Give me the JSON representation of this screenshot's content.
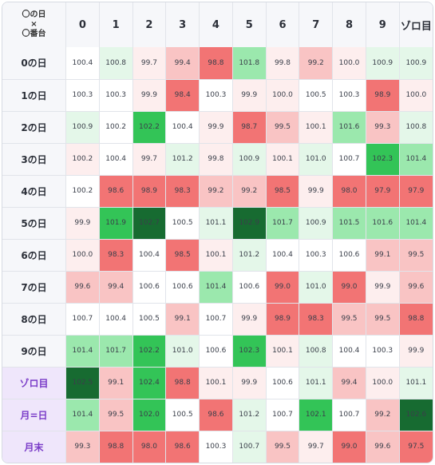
{
  "corner": {
    "line1": "〇の日",
    "line2": "×",
    "line3": "〇番台"
  },
  "columns": [
    "0",
    "1",
    "2",
    "3",
    "4",
    "5",
    "6",
    "7",
    "8",
    "9",
    "ゾロ目"
  ],
  "rows": [
    {
      "label": "0の日",
      "special": false,
      "values": [
        {
          "v": "100.4",
          "c": "0"
        },
        {
          "v": "100.8",
          "c": "g1"
        },
        {
          "v": "99.7",
          "c": "r1"
        },
        {
          "v": "99.4",
          "c": "r2"
        },
        {
          "v": "98.8",
          "c": "r3"
        },
        {
          "v": "101.8",
          "c": "g2"
        },
        {
          "v": "99.8",
          "c": "r1"
        },
        {
          "v": "99.2",
          "c": "r2"
        },
        {
          "v": "100.0",
          "c": "r1"
        },
        {
          "v": "100.9",
          "c": "g1"
        },
        {
          "v": "100.9",
          "c": "g1"
        }
      ]
    },
    {
      "label": "1の日",
      "special": false,
      "values": [
        {
          "v": "100.3",
          "c": "0"
        },
        {
          "v": "100.3",
          "c": "0"
        },
        {
          "v": "99.9",
          "c": "r1"
        },
        {
          "v": "98.4",
          "c": "r3"
        },
        {
          "v": "100.3",
          "c": "0"
        },
        {
          "v": "99.9",
          "c": "r1"
        },
        {
          "v": "100.0",
          "c": "r1"
        },
        {
          "v": "100.5",
          "c": "0"
        },
        {
          "v": "100.3",
          "c": "0"
        },
        {
          "v": "98.9",
          "c": "r3"
        },
        {
          "v": "100.0",
          "c": "r1"
        }
      ]
    },
    {
      "label": "2の日",
      "special": false,
      "values": [
        {
          "v": "100.9",
          "c": "g1"
        },
        {
          "v": "100.2",
          "c": "0"
        },
        {
          "v": "102.2",
          "c": "g3"
        },
        {
          "v": "100.4",
          "c": "0"
        },
        {
          "v": "99.9",
          "c": "r1"
        },
        {
          "v": "98.7",
          "c": "r3"
        },
        {
          "v": "99.5",
          "c": "r2"
        },
        {
          "v": "100.1",
          "c": "r1"
        },
        {
          "v": "101.6",
          "c": "g2"
        },
        {
          "v": "99.3",
          "c": "r2"
        },
        {
          "v": "100.8",
          "c": "g1"
        }
      ]
    },
    {
      "label": "3の日",
      "special": false,
      "values": [
        {
          "v": "100.2",
          "c": "r1"
        },
        {
          "v": "100.4",
          "c": "0"
        },
        {
          "v": "99.7",
          "c": "r1"
        },
        {
          "v": "101.2",
          "c": "g1"
        },
        {
          "v": "99.8",
          "c": "r1"
        },
        {
          "v": "100.9",
          "c": "g1"
        },
        {
          "v": "100.1",
          "c": "r1"
        },
        {
          "v": "101.0",
          "c": "g1"
        },
        {
          "v": "100.7",
          "c": "0"
        },
        {
          "v": "102.3",
          "c": "g3"
        },
        {
          "v": "101.4",
          "c": "g2"
        }
      ]
    },
    {
      "label": "4の日",
      "special": false,
      "values": [
        {
          "v": "100.2",
          "c": "0"
        },
        {
          "v": "98.6",
          "c": "r3"
        },
        {
          "v": "98.9",
          "c": "r3"
        },
        {
          "v": "98.3",
          "c": "r3"
        },
        {
          "v": "99.2",
          "c": "r2"
        },
        {
          "v": "99.2",
          "c": "r2"
        },
        {
          "v": "98.5",
          "c": "r3"
        },
        {
          "v": "99.9",
          "c": "r1"
        },
        {
          "v": "98.0",
          "c": "r3"
        },
        {
          "v": "97.9",
          "c": "r3"
        },
        {
          "v": "97.9",
          "c": "r3"
        }
      ]
    },
    {
      "label": "5の日",
      "special": false,
      "values": [
        {
          "v": "99.9",
          "c": "r1"
        },
        {
          "v": "101.9",
          "c": "g3"
        },
        {
          "v": "102.7",
          "c": "g4"
        },
        {
          "v": "100.5",
          "c": "0"
        },
        {
          "v": "101.1",
          "c": "g1"
        },
        {
          "v": "102.9",
          "c": "g4"
        },
        {
          "v": "101.7",
          "c": "g2"
        },
        {
          "v": "100.9",
          "c": "g1"
        },
        {
          "v": "101.5",
          "c": "g2"
        },
        {
          "v": "101.6",
          "c": "g2"
        },
        {
          "v": "101.4",
          "c": "g2"
        }
      ]
    },
    {
      "label": "6の日",
      "special": false,
      "values": [
        {
          "v": "100.0",
          "c": "r1"
        },
        {
          "v": "98.3",
          "c": "r3"
        },
        {
          "v": "100.4",
          "c": "0"
        },
        {
          "v": "98.5",
          "c": "r3"
        },
        {
          "v": "100.1",
          "c": "r1"
        },
        {
          "v": "101.2",
          "c": "g1"
        },
        {
          "v": "100.4",
          "c": "0"
        },
        {
          "v": "100.3",
          "c": "0"
        },
        {
          "v": "100.6",
          "c": "0"
        },
        {
          "v": "99.1",
          "c": "r2"
        },
        {
          "v": "99.5",
          "c": "r2"
        }
      ]
    },
    {
      "label": "7の日",
      "special": false,
      "values": [
        {
          "v": "99.6",
          "c": "r2"
        },
        {
          "v": "99.4",
          "c": "r2"
        },
        {
          "v": "100.6",
          "c": "0"
        },
        {
          "v": "100.6",
          "c": "0"
        },
        {
          "v": "101.4",
          "c": "g2"
        },
        {
          "v": "100.6",
          "c": "0"
        },
        {
          "v": "99.0",
          "c": "r3"
        },
        {
          "v": "101.0",
          "c": "g1"
        },
        {
          "v": "99.0",
          "c": "r3"
        },
        {
          "v": "99.9",
          "c": "r1"
        },
        {
          "v": "99.6",
          "c": "r2"
        }
      ]
    },
    {
      "label": "8の日",
      "special": false,
      "values": [
        {
          "v": "100.7",
          "c": "0"
        },
        {
          "v": "100.4",
          "c": "0"
        },
        {
          "v": "100.5",
          "c": "0"
        },
        {
          "v": "99.1",
          "c": "r2"
        },
        {
          "v": "100.7",
          "c": "0"
        },
        {
          "v": "99.9",
          "c": "r1"
        },
        {
          "v": "98.9",
          "c": "r3"
        },
        {
          "v": "98.3",
          "c": "r3"
        },
        {
          "v": "99.5",
          "c": "r2"
        },
        {
          "v": "99.5",
          "c": "r2"
        },
        {
          "v": "98.8",
          "c": "r3"
        }
      ]
    },
    {
      "label": "9の日",
      "special": false,
      "values": [
        {
          "v": "101.4",
          "c": "g2"
        },
        {
          "v": "101.7",
          "c": "g2"
        },
        {
          "v": "102.2",
          "c": "g3"
        },
        {
          "v": "101.0",
          "c": "g1"
        },
        {
          "v": "100.6",
          "c": "0"
        },
        {
          "v": "102.3",
          "c": "g3"
        },
        {
          "v": "100.1",
          "c": "r1"
        },
        {
          "v": "100.8",
          "c": "g1"
        },
        {
          "v": "100.4",
          "c": "0"
        },
        {
          "v": "100.3",
          "c": "0"
        },
        {
          "v": "99.9",
          "c": "r1"
        }
      ]
    },
    {
      "label": "ゾロ目",
      "special": true,
      "values": [
        {
          "v": "102.5",
          "c": "g4"
        },
        {
          "v": "99.1",
          "c": "r2"
        },
        {
          "v": "102.4",
          "c": "g3"
        },
        {
          "v": "98.8",
          "c": "r3"
        },
        {
          "v": "100.1",
          "c": "r1"
        },
        {
          "v": "99.9",
          "c": "r1"
        },
        {
          "v": "100.6",
          "c": "0"
        },
        {
          "v": "101.1",
          "c": "g1"
        },
        {
          "v": "99.4",
          "c": "r2"
        },
        {
          "v": "100.0",
          "c": "r1"
        },
        {
          "v": "101.1",
          "c": "g1"
        }
      ]
    },
    {
      "label": "月=日",
      "special": true,
      "values": [
        {
          "v": "101.4",
          "c": "g2"
        },
        {
          "v": "99.5",
          "c": "r2"
        },
        {
          "v": "102.0",
          "c": "g3"
        },
        {
          "v": "100.5",
          "c": "0"
        },
        {
          "v": "98.6",
          "c": "r3"
        },
        {
          "v": "101.2",
          "c": "g1"
        },
        {
          "v": "100.7",
          "c": "0"
        },
        {
          "v": "102.1",
          "c": "g3"
        },
        {
          "v": "100.7",
          "c": "0"
        },
        {
          "v": "99.2",
          "c": "r2"
        },
        {
          "v": "102.6",
          "c": "g4"
        }
      ]
    },
    {
      "label": "月末",
      "special": true,
      "values": [
        {
          "v": "99.3",
          "c": "r2"
        },
        {
          "v": "98.8",
          "c": "r3"
        },
        {
          "v": "98.0",
          "c": "r3"
        },
        {
          "v": "98.6",
          "c": "r3"
        },
        {
          "v": "100.3",
          "c": "0"
        },
        {
          "v": "100.7",
          "c": "g1"
        },
        {
          "v": "99.5",
          "c": "r2"
        },
        {
          "v": "99.7",
          "c": "r1"
        },
        {
          "v": "99.0",
          "c": "r3"
        },
        {
          "v": "99.6",
          "c": "r2"
        },
        {
          "v": "97.5",
          "c": "r3"
        }
      ]
    }
  ],
  "colors": {
    "red_light": "#fdeeee",
    "red_mid": "#f9c4c4",
    "red_strong": "#f27474",
    "green_light": "#e4f7e9",
    "green_mid": "#9be8ad",
    "green_strong": "#33c457",
    "green_darkest": "#176b31",
    "special_row_bg": "#efe6fb",
    "special_row_text": "#7a3cc8"
  }
}
